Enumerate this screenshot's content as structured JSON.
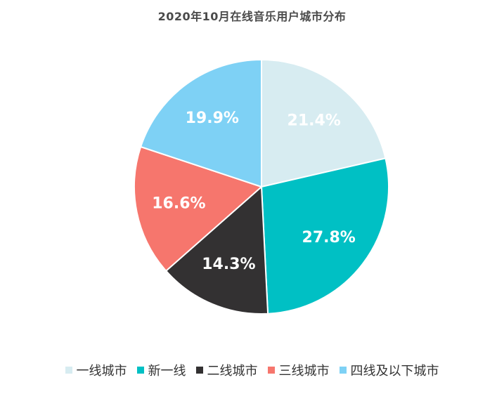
{
  "chart_data": {
    "type": "pie",
    "title": "2020年10月在线音乐用户城市分布",
    "categories": [
      "一线城市",
      "新一线",
      "二线城市",
      "三线城市",
      "四线及以下城市"
    ],
    "values": [
      21.4,
      27.8,
      14.3,
      16.6,
      19.9
    ],
    "value_labels": [
      "21.4%",
      "27.8%",
      "14.3%",
      "16.6%",
      "19.9%"
    ],
    "colors": [
      "#d7ecf1",
      "#00c0c4",
      "#333132",
      "#f6766d",
      "#7ed1f5"
    ],
    "label_colors": [
      "#ffffff",
      "#ffffff",
      "#ffffff",
      "#ffffff",
      "#ffffff"
    ],
    "legend_position": "bottom",
    "start_angle": "12 o'clock",
    "direction": "clockwise"
  }
}
